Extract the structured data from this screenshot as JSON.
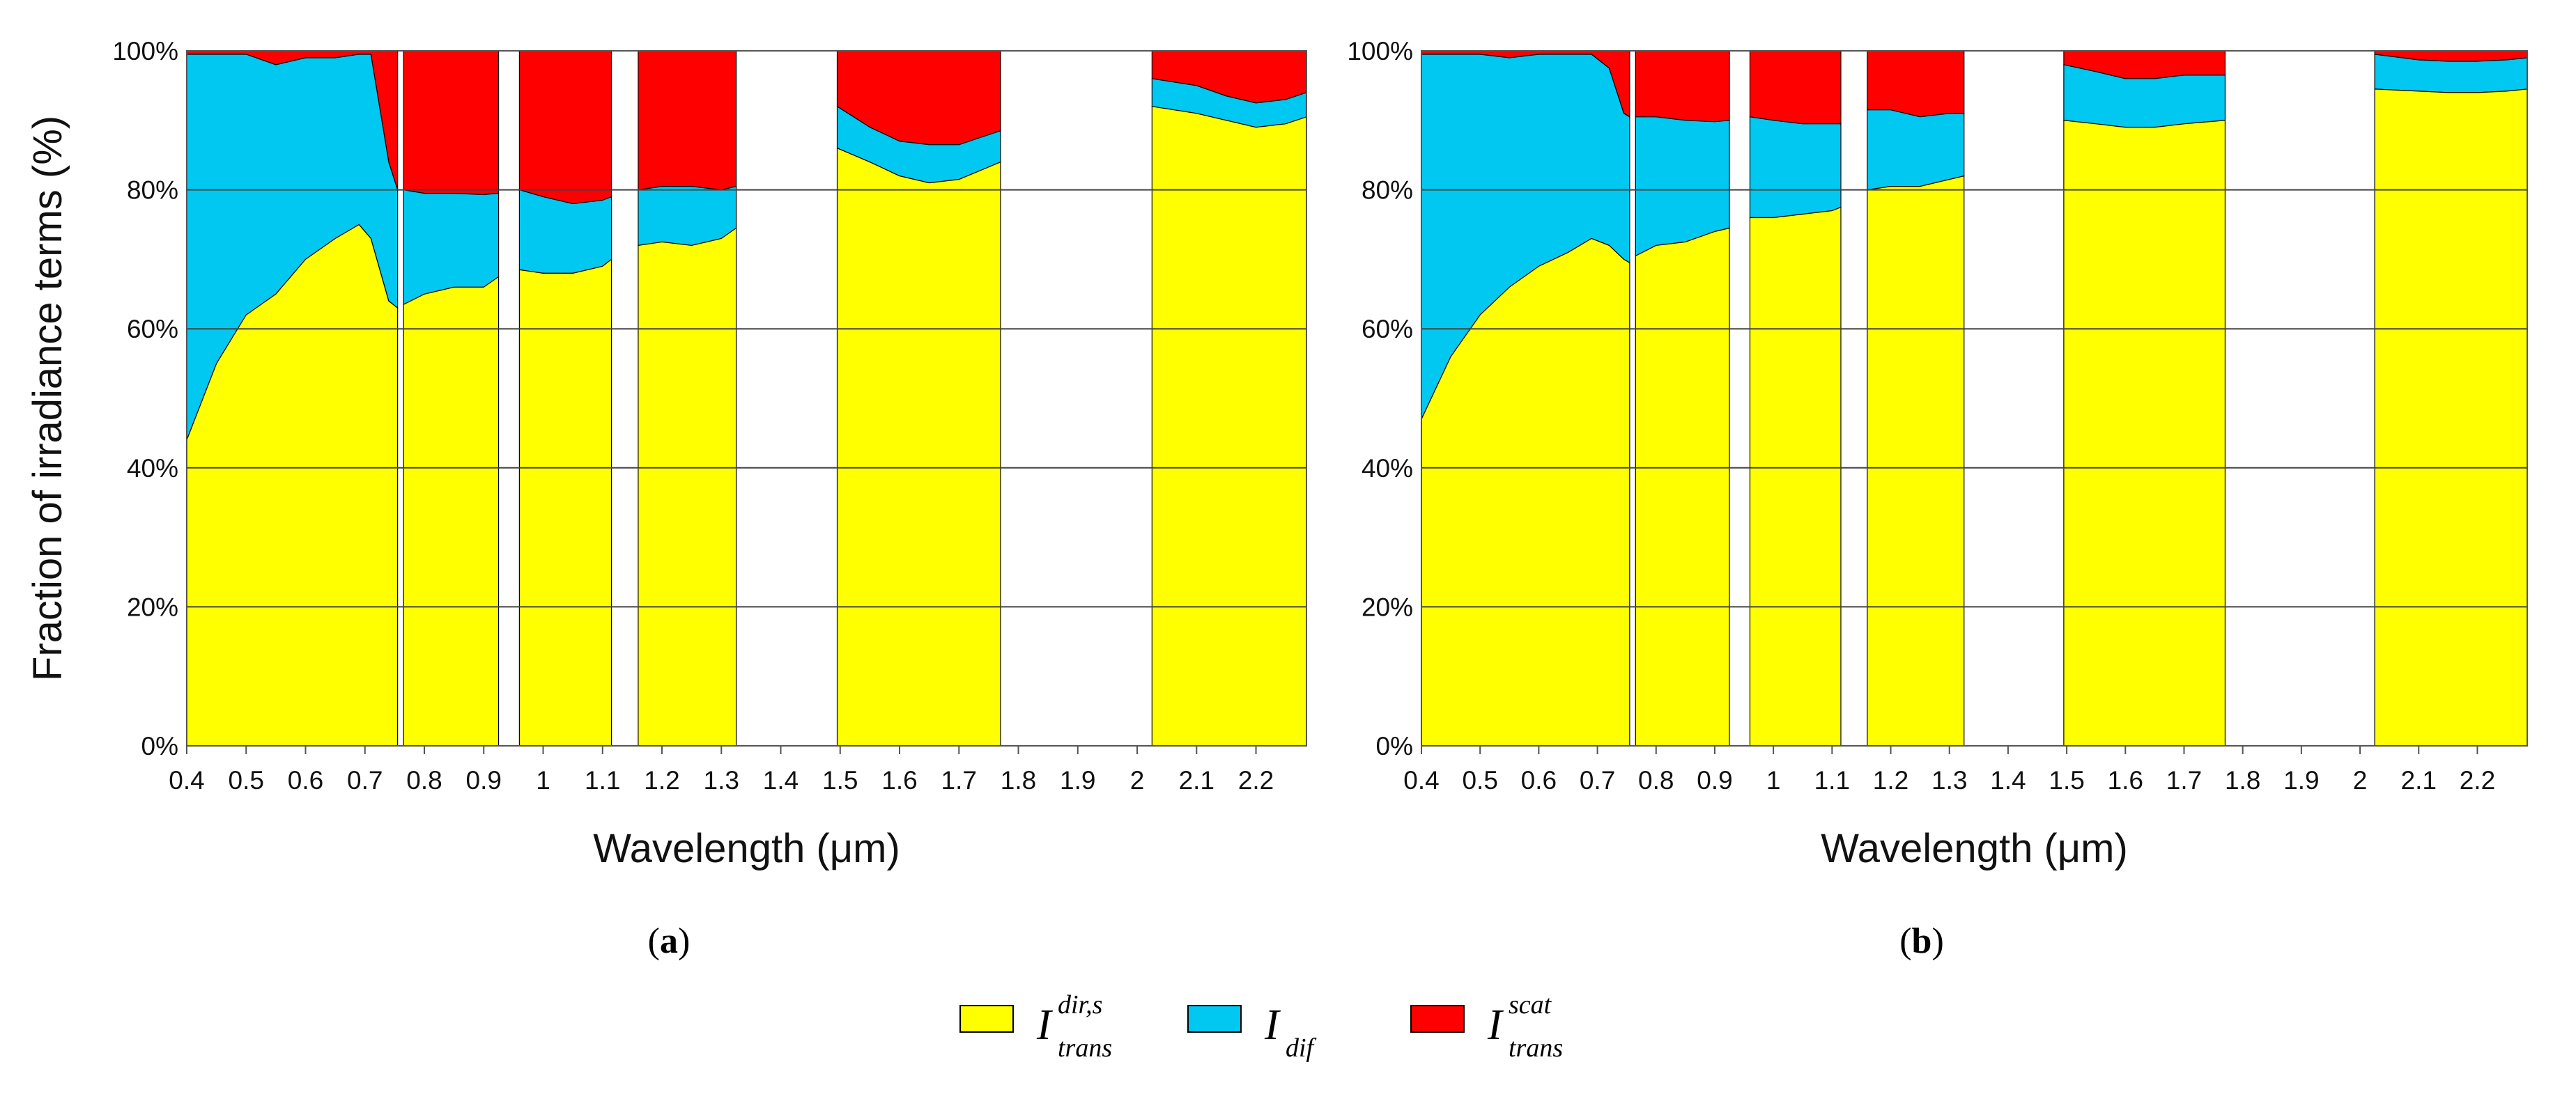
{
  "figure": {
    "legend": [
      {
        "key": "dir",
        "base": "I",
        "sup": "dir,s",
        "sub": "trans",
        "color": "#ffff00"
      },
      {
        "key": "dif",
        "base": "I",
        "sup": "",
        "sub": "dif",
        "color": "#00c8f0"
      },
      {
        "key": "scat",
        "base": "I",
        "sup": "scat",
        "sub": "trans",
        "color": "#ff0000"
      }
    ]
  },
  "chart_data": [
    {
      "type": "area",
      "stacked": true,
      "panel_label": "a",
      "xlabel": "Wavelength (μm)",
      "ylabel": "Fraction of irradiance terms (%)",
      "xlim": [
        0.4,
        2.285
      ],
      "ylim": [
        0,
        100
      ],
      "xticks": [
        "0.4",
        "0.5",
        "0.6",
        "0.7",
        "0.8",
        "0.9",
        "1",
        "1.1",
        "1.2",
        "1.3",
        "1.4",
        "1.5",
        "1.6",
        "1.7",
        "1.8",
        "1.9",
        "2",
        "2.1",
        "2.2"
      ],
      "xtick_values": [
        0.4,
        0.5,
        0.6,
        0.7,
        0.8,
        0.9,
        1.0,
        1.1,
        1.2,
        1.3,
        1.4,
        1.5,
        1.6,
        1.7,
        1.8,
        1.9,
        2.0,
        2.1,
        2.2
      ],
      "yticks": [
        "0%",
        "20%",
        "40%",
        "60%",
        "80%",
        "100%"
      ],
      "ytick_values": [
        0,
        20,
        40,
        60,
        80,
        100
      ],
      "grid": true,
      "series_names": [
        "I_trans^dir,s",
        "I_dif",
        "I_trans^scat"
      ],
      "bands": [
        {
          "x": [
            0.4,
            0.45,
            0.5,
            0.55,
            0.6,
            0.65,
            0.69,
            0.71,
            0.74,
            0.755
          ],
          "dir": [
            44,
            55,
            62,
            65,
            70,
            73,
            75,
            73,
            64,
            63
          ],
          "dif": [
            55.5,
            44.5,
            37.5,
            33,
            29,
            26,
            24.5,
            26.5,
            20,
            17
          ]
        },
        {
          "x": [
            0.765,
            0.8,
            0.85,
            0.9,
            0.925
          ],
          "dir": [
            63.5,
            65,
            66,
            66,
            67.5
          ],
          "dif": [
            16.5,
            14.5,
            13.5,
            13.3,
            12
          ]
        },
        {
          "x": [
            0.96,
            1.0,
            1.05,
            1.1,
            1.115
          ],
          "dir": [
            68.5,
            68,
            68,
            69,
            70
          ],
          "dif": [
            11.5,
            11,
            10,
            9.5,
            9
          ]
        },
        {
          "x": [
            1.16,
            1.2,
            1.25,
            1.3,
            1.325
          ],
          "dir": [
            72,
            72.5,
            72,
            73,
            74.5
          ],
          "dif": [
            8,
            8,
            8.5,
            7,
            6
          ]
        },
        {
          "x": [
            1.495,
            1.55,
            1.6,
            1.65,
            1.7,
            1.77
          ],
          "dir": [
            86,
            84,
            82,
            81,
            81.5,
            84
          ],
          "dif": [
            6,
            5,
            5,
            5.5,
            5,
            4.5
          ]
        },
        {
          "x": [
            2.025,
            2.1,
            2.15,
            2.2,
            2.25,
            2.285
          ],
          "dir": [
            92,
            91,
            90,
            89,
            89.5,
            90.5
          ],
          "dif": [
            4,
            4,
            3.5,
            3.5,
            3.5,
            3.5
          ]
        }
      ]
    },
    {
      "type": "area",
      "stacked": true,
      "panel_label": "b",
      "xlabel": "Wavelength (μm)",
      "ylabel": "",
      "xlim": [
        0.4,
        2.285
      ],
      "ylim": [
        0,
        100
      ],
      "xticks": [
        "0.4",
        "0.5",
        "0.6",
        "0.7",
        "0.8",
        "0.9",
        "1",
        "1.1",
        "1.2",
        "1.3",
        "1.4",
        "1.5",
        "1.6",
        "1.7",
        "1.8",
        "1.9",
        "2",
        "2.1",
        "2.2"
      ],
      "xtick_values": [
        0.4,
        0.5,
        0.6,
        0.7,
        0.8,
        0.9,
        1.0,
        1.1,
        1.2,
        1.3,
        1.4,
        1.5,
        1.6,
        1.7,
        1.8,
        1.9,
        2.0,
        2.1,
        2.2
      ],
      "yticks": [
        "0%",
        "20%",
        "40%",
        "60%",
        "80%",
        "100%"
      ],
      "ytick_values": [
        0,
        20,
        40,
        60,
        80,
        100
      ],
      "grid": true,
      "series_names": [
        "I_trans^dir,s",
        "I_dif",
        "I_trans^scat"
      ],
      "bands": [
        {
          "x": [
            0.4,
            0.45,
            0.5,
            0.55,
            0.6,
            0.65,
            0.69,
            0.72,
            0.745,
            0.755
          ],
          "dir": [
            47,
            56,
            62,
            66,
            69,
            71,
            73,
            72,
            70,
            69.5
          ],
          "dif": [
            52.5,
            43.5,
            37.5,
            33,
            30.5,
            28.5,
            26.5,
            25.5,
            21,
            21
          ]
        },
        {
          "x": [
            0.765,
            0.8,
            0.85,
            0.9,
            0.925
          ],
          "dir": [
            70.5,
            72,
            72.5,
            74,
            74.5
          ],
          "dif": [
            20,
            18.5,
            17.5,
            15.8,
            15.5
          ]
        },
        {
          "x": [
            0.96,
            1.0,
            1.05,
            1.1,
            1.115
          ],
          "dir": [
            76,
            76,
            76.5,
            77,
            77.5
          ],
          "dif": [
            14.5,
            14,
            13,
            12.5,
            12
          ]
        },
        {
          "x": [
            1.16,
            1.2,
            1.25,
            1.3,
            1.325
          ],
          "dir": [
            80,
            80.5,
            80.5,
            81.5,
            82
          ],
          "dif": [
            11.5,
            11,
            10,
            9.5,
            9
          ]
        },
        {
          "x": [
            1.495,
            1.55,
            1.6,
            1.65,
            1.7,
            1.77
          ],
          "dir": [
            90,
            89.5,
            89,
            89,
            89.5,
            90
          ],
          "dif": [
            8,
            7.5,
            7,
            7,
            7,
            6.5
          ]
        },
        {
          "x": [
            2.025,
            2.1,
            2.15,
            2.2,
            2.25,
            2.285
          ],
          "dir": [
            94.5,
            94.2,
            94,
            94,
            94.2,
            94.5
          ],
          "dif": [
            5,
            4.5,
            4.5,
            4.5,
            4.5,
            4.5
          ]
        }
      ]
    }
  ]
}
